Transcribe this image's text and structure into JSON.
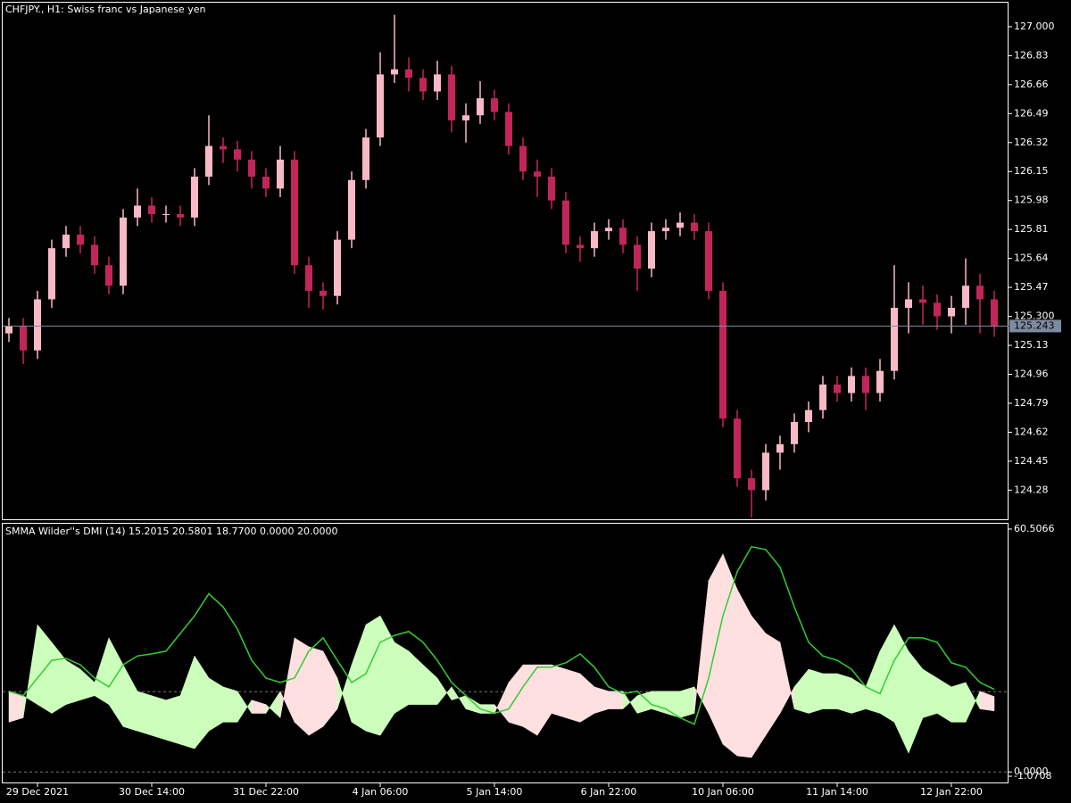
{
  "chart_data": [
    {
      "type": "candlestick",
      "title": "CHFJPY., H1:  Swiss franc vs Japanese yen",
      "categories": [
        null,
        null,
        "29 Dec 2021",
        null,
        null,
        null,
        null,
        null,
        null,
        null,
        "30 Dec 14:00",
        null,
        null,
        null,
        null,
        null,
        null,
        null,
        "31 Dec 22:00",
        null,
        null,
        null,
        null,
        null,
        null,
        null,
        "4 Jan 06:00",
        null,
        null,
        null,
        null,
        null,
        null,
        null,
        "5 Jan 14:00",
        null,
        null,
        null,
        null,
        null,
        null,
        null,
        "6 Jan 22:00",
        null,
        null,
        null,
        null,
        null,
        null,
        null,
        "10 Jan 06:00",
        null,
        null,
        null,
        null,
        null,
        null,
        null,
        "11 Jan 14:00",
        null,
        null,
        null,
        null,
        null,
        null,
        null,
        "12 Jan 22:00",
        null,
        null,
        null
      ],
      "open": [
        125.2,
        125.24,
        125.1,
        125.4,
        125.7,
        125.78,
        125.72,
        125.6,
        125.48,
        125.88,
        125.95,
        125.9,
        125.9,
        125.88,
        126.12,
        126.3,
        126.28,
        126.22,
        126.12,
        126.05,
        126.22,
        125.6,
        125.45,
        125.42,
        125.75,
        126.1,
        126.35,
        126.72,
        126.75,
        126.7,
        126.62,
        126.72,
        126.45,
        126.48,
        126.58,
        126.5,
        126.3,
        126.15,
        126.12,
        125.98,
        125.72,
        125.7,
        125.8,
        125.82,
        125.72,
        125.58,
        125.8,
        125.82,
        125.85,
        125.8,
        125.45,
        124.7,
        124.35,
        124.28,
        124.5,
        124.55,
        124.68,
        124.75,
        124.9,
        124.85,
        124.95,
        124.85,
        124.98,
        125.35,
        125.4,
        125.38,
        125.3,
        125.35,
        125.48,
        125.4
      ],
      "high": [
        125.29,
        125.29,
        125.45,
        125.75,
        125.83,
        125.83,
        125.77,
        125.65,
        125.93,
        126.05,
        126.0,
        125.95,
        125.95,
        126.17,
        126.48,
        126.35,
        126.33,
        126.27,
        126.17,
        126.3,
        126.27,
        125.65,
        125.5,
        125.8,
        126.15,
        126.4,
        126.85,
        127.07,
        126.82,
        126.75,
        126.8,
        126.77,
        126.55,
        126.68,
        126.63,
        126.55,
        126.35,
        126.22,
        126.17,
        126.03,
        125.77,
        125.85,
        125.87,
        125.87,
        125.77,
        125.85,
        125.87,
        125.91,
        125.9,
        125.85,
        125.5,
        124.75,
        124.4,
        124.55,
        124.6,
        124.73,
        124.8,
        124.95,
        124.95,
        125.0,
        125.0,
        125.05,
        125.6,
        125.5,
        125.48,
        125.43,
        125.42,
        125.64,
        125.55,
        125.45
      ],
      "low": [
        125.15,
        125.02,
        125.05,
        125.35,
        125.65,
        125.67,
        125.55,
        125.43,
        125.43,
        125.83,
        125.85,
        125.85,
        125.83,
        125.83,
        126.07,
        126.2,
        126.15,
        126.05,
        126.0,
        126.0,
        125.55,
        125.35,
        125.34,
        125.37,
        125.7,
        126.05,
        126.3,
        126.67,
        126.62,
        126.57,
        126.57,
        126.38,
        126.32,
        126.43,
        126.45,
        126.25,
        126.1,
        126.0,
        125.93,
        125.67,
        125.62,
        125.65,
        125.75,
        125.67,
        125.45,
        125.53,
        125.75,
        125.77,
        125.75,
        125.4,
        124.65,
        124.3,
        124.12,
        124.22,
        124.4,
        124.5,
        124.62,
        124.7,
        124.8,
        124.8,
        124.75,
        124.8,
        124.93,
        125.2,
        125.25,
        125.22,
        125.2,
        125.25,
        125.2,
        125.18
      ],
      "close": [
        125.24,
        125.1,
        125.4,
        125.7,
        125.78,
        125.72,
        125.6,
        125.48,
        125.88,
        125.95,
        125.9,
        125.9,
        125.88,
        126.12,
        126.3,
        126.28,
        126.22,
        126.12,
        126.05,
        126.22,
        125.6,
        125.45,
        125.42,
        125.75,
        126.1,
        126.35,
        126.72,
        126.75,
        126.7,
        126.62,
        126.72,
        126.45,
        126.48,
        126.58,
        126.5,
        126.3,
        126.15,
        126.12,
        125.98,
        125.72,
        125.7,
        125.8,
        125.82,
        125.72,
        125.58,
        125.8,
        125.82,
        125.85,
        125.8,
        125.45,
        124.7,
        124.35,
        124.28,
        124.5,
        124.55,
        124.68,
        124.75,
        124.9,
        124.85,
        124.95,
        124.85,
        124.98,
        125.35,
        125.4,
        125.38,
        125.3,
        125.35,
        125.48,
        125.4,
        125.24
      ],
      "up_color": "#f7b9c6",
      "down_color": "#c2255c",
      "ylim": [
        124.109,
        127.141
      ],
      "yticks": [
        {
          "value": 127,
          "label": "127.000"
        },
        126.83,
        126.66,
        126.49,
        126.32,
        126.15,
        125.98,
        125.81,
        125.64,
        125.47,
        {
          "value": 125.3,
          "label": "125.300"
        },
        125.13,
        124.96,
        124.79,
        124.62,
        124.45,
        124.28
      ],
      "last_price": 125.243
    },
    {
      "type": "dmi",
      "title": "SMMA Wilder''s DMI (14) 15.2015 20.5801 18.7700 0.0000 20.0000",
      "series": [
        {
          "color": "#ccffbb",
          "values": [
            12.4,
            13.5,
            36.7,
            32.3,
            27.8,
            25.6,
            22.3,
            33.4,
            26.7,
            20.1,
            19.0,
            17.9,
            19.0,
            28.9,
            23.4,
            21.2,
            20.1,
            14.6,
            14.6,
            20.1,
            12.4,
            9.1,
            11.3,
            15.7,
            26.7,
            36.7,
            38.9,
            32.3,
            30.1,
            26.7,
            23.4,
            17.9,
            19.0,
            16.8,
            16.8,
            12.4,
            11.3,
            9.1,
            14.6,
            13.5,
            12.4,
            14.6,
            15.7,
            15.7,
            19.0,
            20.1,
            20.1,
            20.1,
            21.2,
            14.6,
            6.9,
            4.0,
            3.6,
            9.1,
            14.6,
            21.2,
            25.6,
            24.5,
            24.5,
            23.4,
            21.2,
            30.1,
            36.7,
            30.1,
            25.6,
            23.4,
            21.2,
            22.3,
            15.7,
            15.2
          ]
        },
        {
          "color": "#ffe0e0",
          "values": [
            20.1,
            19.0,
            16.8,
            14.6,
            16.8,
            17.9,
            19.0,
            16.8,
            11.3,
            10.2,
            9.1,
            8.0,
            6.9,
            5.8,
            10.2,
            12.4,
            12.4,
            17.9,
            16.8,
            13.5,
            33.4,
            31.2,
            30.1,
            23.4,
            12.4,
            10.2,
            9.1,
            14.6,
            16.8,
            16.8,
            16.8,
            21.2,
            15.7,
            14.6,
            14.6,
            22.3,
            26.7,
            26.7,
            26.7,
            25.6,
            24.5,
            21.2,
            20.1,
            20.1,
            14.6,
            15.7,
            14.6,
            13.5,
            14.6,
            47.7,
            54.3,
            45.5,
            38.9,
            34.5,
            32.3,
            15.7,
            14.6,
            15.7,
            15.7,
            14.6,
            15.7,
            14.6,
            12.4,
            4.7,
            13.5,
            14.6,
            12.4,
            12.4,
            20.1,
            18.8
          ]
        },
        {
          "color": "#32cd32",
          "values": [
            20.1,
            19.0,
            23.4,
            27.8,
            28.3,
            26.7,
            23.4,
            21.2,
            26.7,
            28.9,
            29.4,
            30.1,
            34.5,
            38.9,
            44.4,
            41.1,
            35.6,
            27.8,
            23.4,
            22.3,
            23.4,
            30.1,
            33.4,
            27.8,
            22.3,
            24.5,
            32.3,
            34.0,
            35.0,
            32.3,
            27.8,
            22.3,
            19.0,
            15.7,
            14.6,
            15.7,
            21.2,
            26.1,
            26.1,
            27.2,
            29.4,
            26.1,
            21.2,
            19.5,
            20.1,
            16.8,
            15.7,
            13.5,
            11.9,
            23.4,
            38.9,
            49.9,
            56.1,
            55.4,
            51.0,
            41.1,
            32.3,
            28.9,
            27.8,
            25.6,
            21.2,
            19.5,
            27.8,
            33.4,
            33.4,
            32.3,
            27.2,
            26.1,
            22.3,
            20.6
          ]
        }
      ],
      "ylim": [
        -2.62,
        61.83
      ],
      "yticks": [
        60.5066,
        {
          "value": 0,
          "label": "0.0000"
        },
        -1.0708
      ],
      "levels": [
        20,
        0
      ]
    }
  ]
}
